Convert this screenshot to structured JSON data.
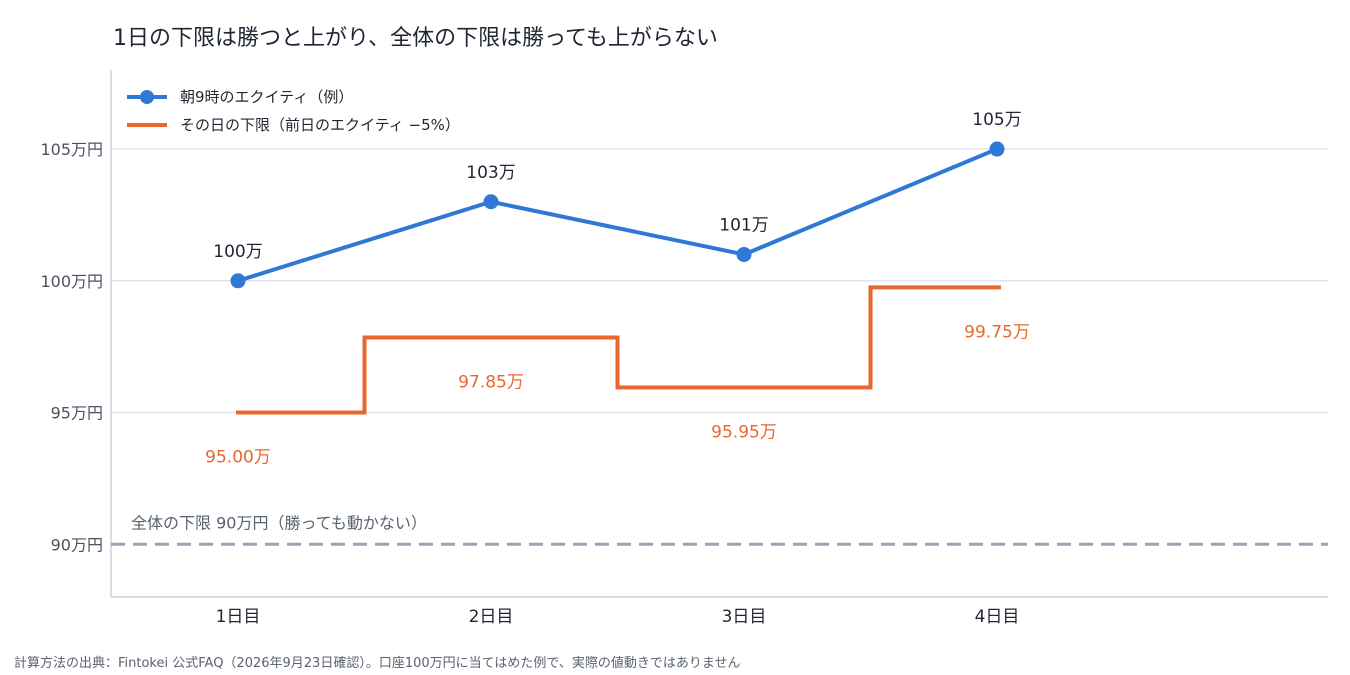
{
  "title": "1日の下限は勝つと上がり、全体の下限は勝っても上がらない",
  "source_note": "計算方法の出典：Fintokei 公式FAQ（2026年9月23日確認）。口座100万円に当てはめた例で、実際の値動きではありません",
  "colors": {
    "equity": "#2f78d3",
    "floor": "#e8672c",
    "overall": "#9aa3b5",
    "grid": "#dde6ee",
    "axis": "#c8d3de"
  },
  "chart_data": {
    "type": "line",
    "categories": [
      "1日目",
      "2日目",
      "3日目",
      "4日目"
    ],
    "ylim": [
      88,
      108
    ],
    "yticks": [
      90,
      95,
      100,
      105
    ],
    "ytick_labels": [
      "90万円",
      "95万円",
      "100万円",
      "105万円"
    ],
    "grid": true,
    "legend_position": "top-left",
    "series": [
      {
        "name": "朝9時のエクイティ（例）",
        "style": "line-markers",
        "values": [
          100,
          103,
          101,
          105
        ],
        "labels": [
          "100万",
          "103万",
          "101万",
          "105万"
        ]
      },
      {
        "name": "その日の下限（前日のエクイティ −5%）",
        "style": "step",
        "values": [
          95.0,
          97.85,
          95.95,
          99.75
        ],
        "labels": [
          "95.00万",
          "97.85万",
          "95.95万",
          "99.75万"
        ]
      }
    ],
    "reference_line": {
      "value": 90,
      "style": "dashed",
      "label": "全体の下限 90万円（勝っても動かない）"
    }
  }
}
